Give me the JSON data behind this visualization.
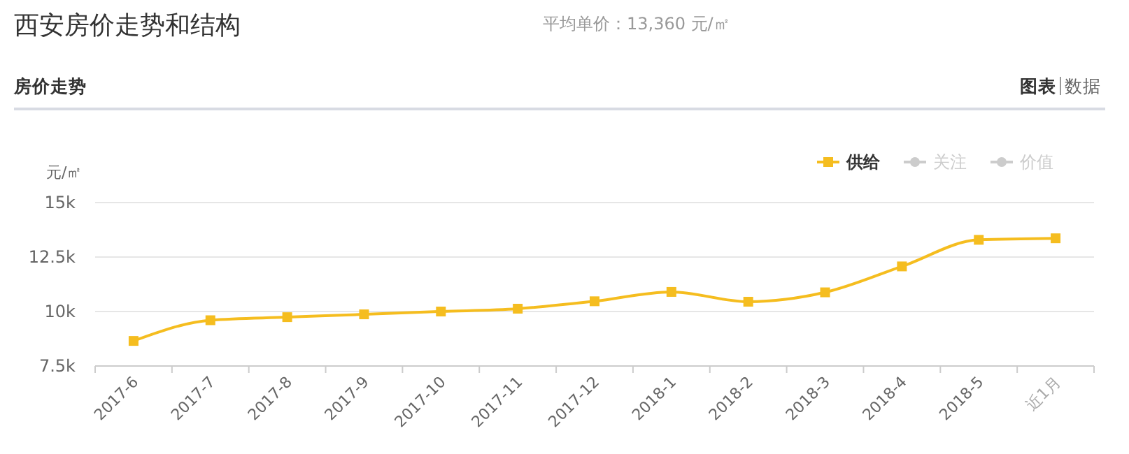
{
  "chart_data": {
    "type": "line",
    "title": "西安房价走势和结构",
    "annotations": [
      "平均单价：13,360 元/㎡",
      "房价走势",
      "图表",
      "数据"
    ],
    "ylabel": "元/㎡",
    "categories": [
      "2017-6",
      "2017-7",
      "2017-8",
      "2017-9",
      "2017-10",
      "2017-11",
      "2017-12",
      "2018-1",
      "2018-2",
      "2018-3",
      "2018-4",
      "2018-5",
      "近1月"
    ],
    "series": [
      {
        "name": "供给",
        "color": "#f5bd1f",
        "values": [
          8650,
          9600,
          9740,
          9870,
          10000,
          10130,
          10470,
          10900,
          10450,
          10880,
          12070,
          13290,
          13360
        ]
      },
      {
        "name": "关注",
        "color": "#cccccc",
        "values": [
          null,
          null,
          null,
          null,
          null,
          null,
          null,
          null,
          null,
          null,
          null,
          null,
          null
        ]
      },
      {
        "name": "价值",
        "color": "#cccccc",
        "values": [
          null,
          null,
          null,
          null,
          null,
          null,
          null,
          null,
          null,
          null,
          null,
          null,
          null
        ]
      }
    ],
    "ylim": [
      7500,
      15000
    ],
    "yticks": [
      {
        "value": 7500,
        "label": "7.5k"
      },
      {
        "value": 10000,
        "label": "10k"
      },
      {
        "value": 12500,
        "label": "12.5k"
      },
      {
        "value": 15000,
        "label": "15k"
      }
    ],
    "grid": "y",
    "legend": "top right",
    "marker": "square",
    "line_style": "solid"
  }
}
